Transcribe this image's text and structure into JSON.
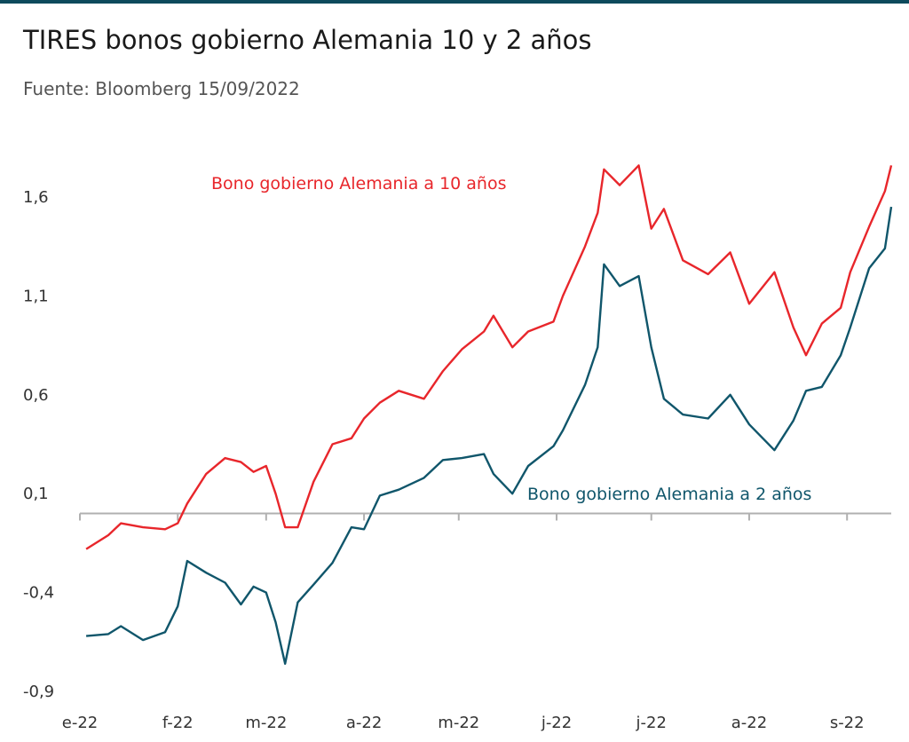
{
  "title": "TIRES bonos gobierno Alemania 10 y 2 años",
  "subtitle": "Fuente: Bloomberg 15/09/2022",
  "colors": {
    "series_10y": "#e8262b",
    "series_2y": "#10566b",
    "axis": "#b0b0b0",
    "top_rule": "#0d4a5c"
  },
  "chart_data": {
    "type": "line",
    "x_ticks": [
      "e-22",
      "f-22",
      "m-22",
      "a-22",
      "m-22",
      "j-22",
      "j-22",
      "a-22",
      "s-22"
    ],
    "y_ticks": [
      "1,6",
      "1,1",
      "0,6",
      "0,1",
      "-0,4",
      "-0,9"
    ],
    "ylim": [
      -0.9,
      1.75
    ],
    "baseline": 0.0,
    "grid": false,
    "series": [
      {
        "name": "Bono gobierno Alemania a 10 años",
        "x": [
          "2022-01-03",
          "2022-01-10",
          "2022-01-14",
          "2022-01-21",
          "2022-01-28",
          "2022-02-01",
          "2022-02-04",
          "2022-02-10",
          "2022-02-16",
          "2022-02-21",
          "2022-02-25",
          "2022-03-01",
          "2022-03-04",
          "2022-03-07",
          "2022-03-11",
          "2022-03-16",
          "2022-03-22",
          "2022-03-28",
          "2022-04-01",
          "2022-04-06",
          "2022-04-12",
          "2022-04-20",
          "2022-04-26",
          "2022-05-02",
          "2022-05-09",
          "2022-05-12",
          "2022-05-18",
          "2022-05-23",
          "2022-05-31",
          "2022-06-03",
          "2022-06-10",
          "2022-06-14",
          "2022-06-16",
          "2022-06-21",
          "2022-06-27",
          "2022-07-01",
          "2022-07-05",
          "2022-07-11",
          "2022-07-19",
          "2022-07-26",
          "2022-08-01",
          "2022-08-09",
          "2022-08-15",
          "2022-08-19",
          "2022-08-24",
          "2022-08-30",
          "2022-09-02",
          "2022-09-08",
          "2022-09-13",
          "2022-09-15"
        ],
        "values": [
          -0.18,
          -0.11,
          -0.05,
          -0.07,
          -0.08,
          -0.05,
          0.05,
          0.2,
          0.28,
          0.26,
          0.21,
          0.24,
          0.1,
          -0.07,
          -0.07,
          0.16,
          0.35,
          0.38,
          0.48,
          0.56,
          0.62,
          0.58,
          0.72,
          0.83,
          0.92,
          1.0,
          0.84,
          0.92,
          0.97,
          1.1,
          1.35,
          1.52,
          1.74,
          1.66,
          1.76,
          1.44,
          1.54,
          1.28,
          1.21,
          1.32,
          1.06,
          1.22,
          0.94,
          0.8,
          0.96,
          1.04,
          1.22,
          1.45,
          1.63,
          1.76
        ]
      },
      {
        "name": "Bono gobierno Alemania a 2 años",
        "x": [
          "2022-01-03",
          "2022-01-10",
          "2022-01-14",
          "2022-01-21",
          "2022-01-28",
          "2022-02-01",
          "2022-02-04",
          "2022-02-10",
          "2022-02-16",
          "2022-02-21",
          "2022-02-25",
          "2022-03-01",
          "2022-03-04",
          "2022-03-07",
          "2022-03-11",
          "2022-03-16",
          "2022-03-22",
          "2022-03-28",
          "2022-04-01",
          "2022-04-06",
          "2022-04-12",
          "2022-04-20",
          "2022-04-26",
          "2022-05-02",
          "2022-05-09",
          "2022-05-12",
          "2022-05-18",
          "2022-05-23",
          "2022-05-31",
          "2022-06-03",
          "2022-06-10",
          "2022-06-14",
          "2022-06-16",
          "2022-06-21",
          "2022-06-27",
          "2022-07-01",
          "2022-07-05",
          "2022-07-11",
          "2022-07-19",
          "2022-07-26",
          "2022-08-01",
          "2022-08-09",
          "2022-08-15",
          "2022-08-19",
          "2022-08-24",
          "2022-08-30",
          "2022-09-02",
          "2022-09-08",
          "2022-09-13",
          "2022-09-15"
        ],
        "values": [
          -0.62,
          -0.61,
          -0.57,
          -0.64,
          -0.6,
          -0.47,
          -0.24,
          -0.3,
          -0.35,
          -0.46,
          -0.37,
          -0.4,
          -0.55,
          -0.76,
          -0.45,
          -0.36,
          -0.25,
          -0.07,
          -0.08,
          0.09,
          0.12,
          0.18,
          0.27,
          0.28,
          0.3,
          0.2,
          0.1,
          0.24,
          0.34,
          0.42,
          0.65,
          0.84,
          1.26,
          1.15,
          1.2,
          0.84,
          0.58,
          0.5,
          0.48,
          0.6,
          0.45,
          0.32,
          0.47,
          0.62,
          0.64,
          0.8,
          0.94,
          1.24,
          1.34,
          1.55
        ]
      }
    ]
  }
}
